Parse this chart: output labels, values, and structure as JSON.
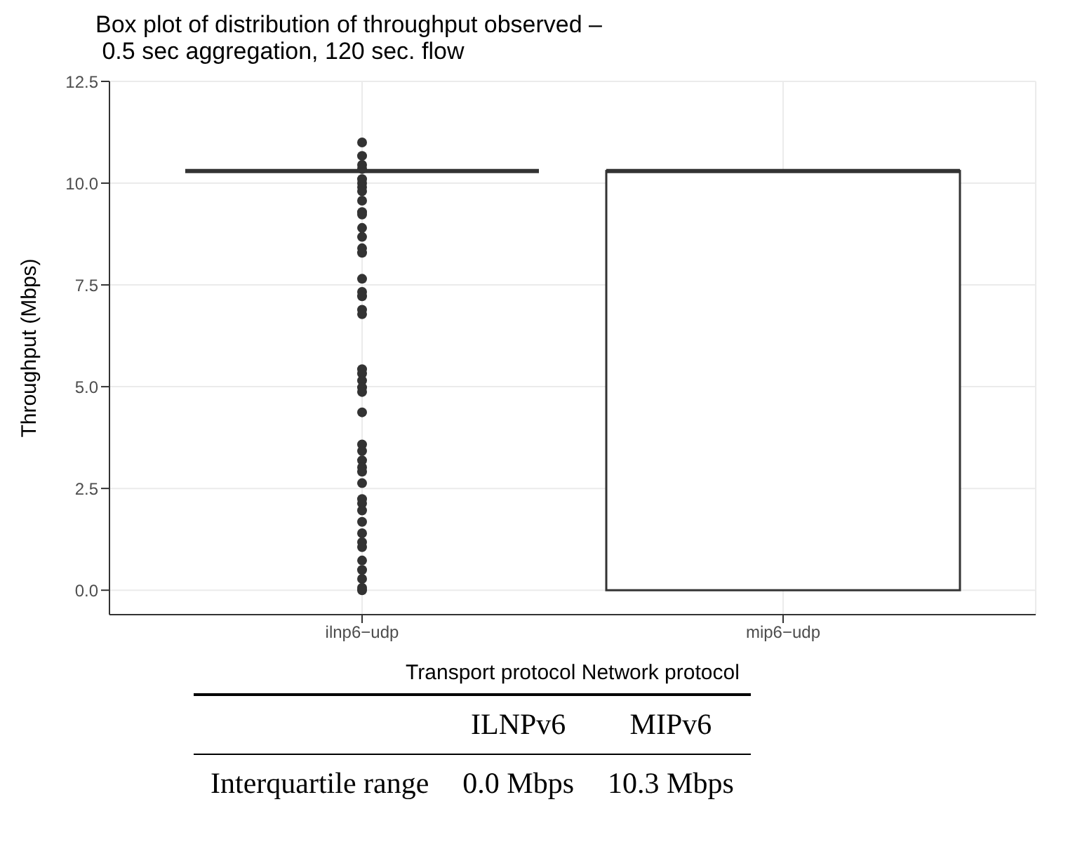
{
  "chart_data": {
    "type": "box",
    "title": "Box plot of distribution of throughput observed –\n 0.5 sec aggregation, 120 sec. flow",
    "xlabel": "Transport protocol Network protocol",
    "ylabel": "Throughput (Mbps)",
    "categories": [
      "ilnp6−udp",
      "mip6−udp"
    ],
    "boxes": [
      {
        "low": 10.3,
        "q1": 10.3,
        "median": 10.3,
        "q3": 10.3,
        "high": 10.3,
        "outliers": [
          11.0,
          10.67,
          10.45,
          10.35,
          10.1,
          10.0,
          9.9,
          9.8,
          9.57,
          9.29,
          9.23,
          8.9,
          8.68,
          8.4,
          8.29,
          7.65,
          7.33,
          7.22,
          6.89,
          6.78,
          5.43,
          5.32,
          5.15,
          4.98,
          4.87,
          4.37,
          3.58,
          3.42,
          3.19,
          3.02,
          2.91,
          2.63,
          2.24,
          2.13,
          1.96,
          1.68,
          1.4,
          1.18,
          1.06,
          0.73,
          0.5,
          0.28,
          0.06,
          0.0
        ]
      },
      {
        "low": 0,
        "q1": 0,
        "median": 10.3,
        "q3": 10.3,
        "high": 10.3
      }
    ],
    "ylim": [
      -0.6,
      12.5
    ],
    "yticks": [
      {
        "value": 0,
        "label": "0.0"
      },
      2.5,
      {
        "value": 5,
        "label": "5.0"
      },
      7.5,
      {
        "value": 10,
        "label": "10.0"
      },
      12.5
    ],
    "grid": true,
    "annotations": [
      "ILNPv6",
      "MIPv6",
      "Interquartile range",
      "0.0 Mbps",
      "10.3 Mbps"
    ]
  }
}
